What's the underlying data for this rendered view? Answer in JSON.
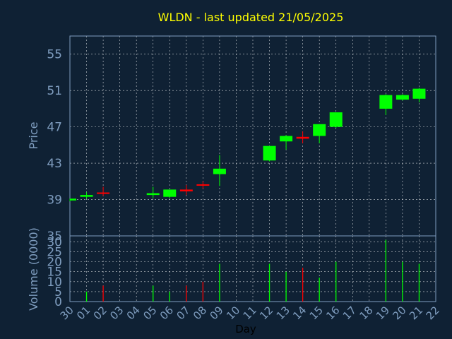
{
  "chart_data": {
    "type": "candlestick",
    "title": "WLDN - last updated 21/05/2025",
    "xlabel": "Day",
    "days": [
      "30",
      "01",
      "02",
      "03",
      "04",
      "05",
      "06",
      "07",
      "08",
      "09",
      "10",
      "11",
      "12",
      "13",
      "14",
      "15",
      "16",
      "17",
      "18",
      "19",
      "20",
      "21",
      "22"
    ],
    "price_panel": {
      "ylabel": "Price",
      "ylim": [
        35,
        57
      ],
      "ticks": [
        35,
        39,
        43,
        47,
        51,
        55
      ]
    },
    "volume_panel": {
      "ylabel": "Volume (0000)",
      "ylim": [
        0,
        33
      ],
      "ticks": [
        0,
        5,
        10,
        15,
        20,
        25,
        30
      ]
    },
    "candles": [
      {
        "day": "30",
        "open": 38.9,
        "high": 39.1,
        "low": 38.8,
        "close": 39.1,
        "volume": 0
      },
      {
        "day": "01",
        "open": 39.3,
        "high": 39.8,
        "low": 39.1,
        "close": 39.5,
        "volume": 5
      },
      {
        "day": "02",
        "open": 39.7,
        "high": 40.4,
        "low": 39.4,
        "close": 39.6,
        "volume": 8
      },
      {
        "day": "05",
        "open": 39.5,
        "high": 40.4,
        "low": 39.2,
        "close": 39.7,
        "volume": 8
      },
      {
        "day": "06",
        "open": 39.3,
        "high": 40.1,
        "low": 39.2,
        "close": 40.1,
        "volume": 5
      },
      {
        "day": "07",
        "open": 40.1,
        "high": 40.6,
        "low": 39.5,
        "close": 39.9,
        "volume": 8
      },
      {
        "day": "08",
        "open": 40.6,
        "high": 41.0,
        "low": 40.2,
        "close": 40.5,
        "volume": 10
      },
      {
        "day": "09",
        "open": 41.8,
        "high": 43.9,
        "low": 40.5,
        "close": 42.4,
        "volume": 19
      },
      {
        "day": "12",
        "open": 43.3,
        "high": 44.9,
        "low": 43.2,
        "close": 44.9,
        "volume": 19
      },
      {
        "day": "13",
        "open": 45.4,
        "high": 46.1,
        "low": 44.5,
        "close": 46.0,
        "volume": 15
      },
      {
        "day": "14",
        "open": 45.9,
        "high": 46.5,
        "low": 45.2,
        "close": 45.7,
        "volume": 17
      },
      {
        "day": "15",
        "open": 46.0,
        "high": 47.3,
        "low": 45.2,
        "close": 47.3,
        "volume": 12
      },
      {
        "day": "16",
        "open": 47.0,
        "high": 48.6,
        "low": 46.9,
        "close": 48.6,
        "volume": 20
      },
      {
        "day": "19",
        "open": 49.0,
        "high": 50.6,
        "low": 48.3,
        "close": 50.5,
        "volume": 31
      },
      {
        "day": "20",
        "open": 50.0,
        "high": 50.6,
        "low": 49.9,
        "close": 50.5,
        "volume": 20
      },
      {
        "day": "21",
        "open": 50.1,
        "high": 51.3,
        "low": 49.7,
        "close": 51.2,
        "volume": 19
      }
    ],
    "colors": {
      "background": "#0f2134",
      "plot_background": "#0f2134",
      "up": "#00ff00",
      "down": "#ff0000",
      "grid": "#ffffff",
      "axis_text": "#7f9dbf",
      "title": "#ffff00"
    },
    "grid": true
  }
}
